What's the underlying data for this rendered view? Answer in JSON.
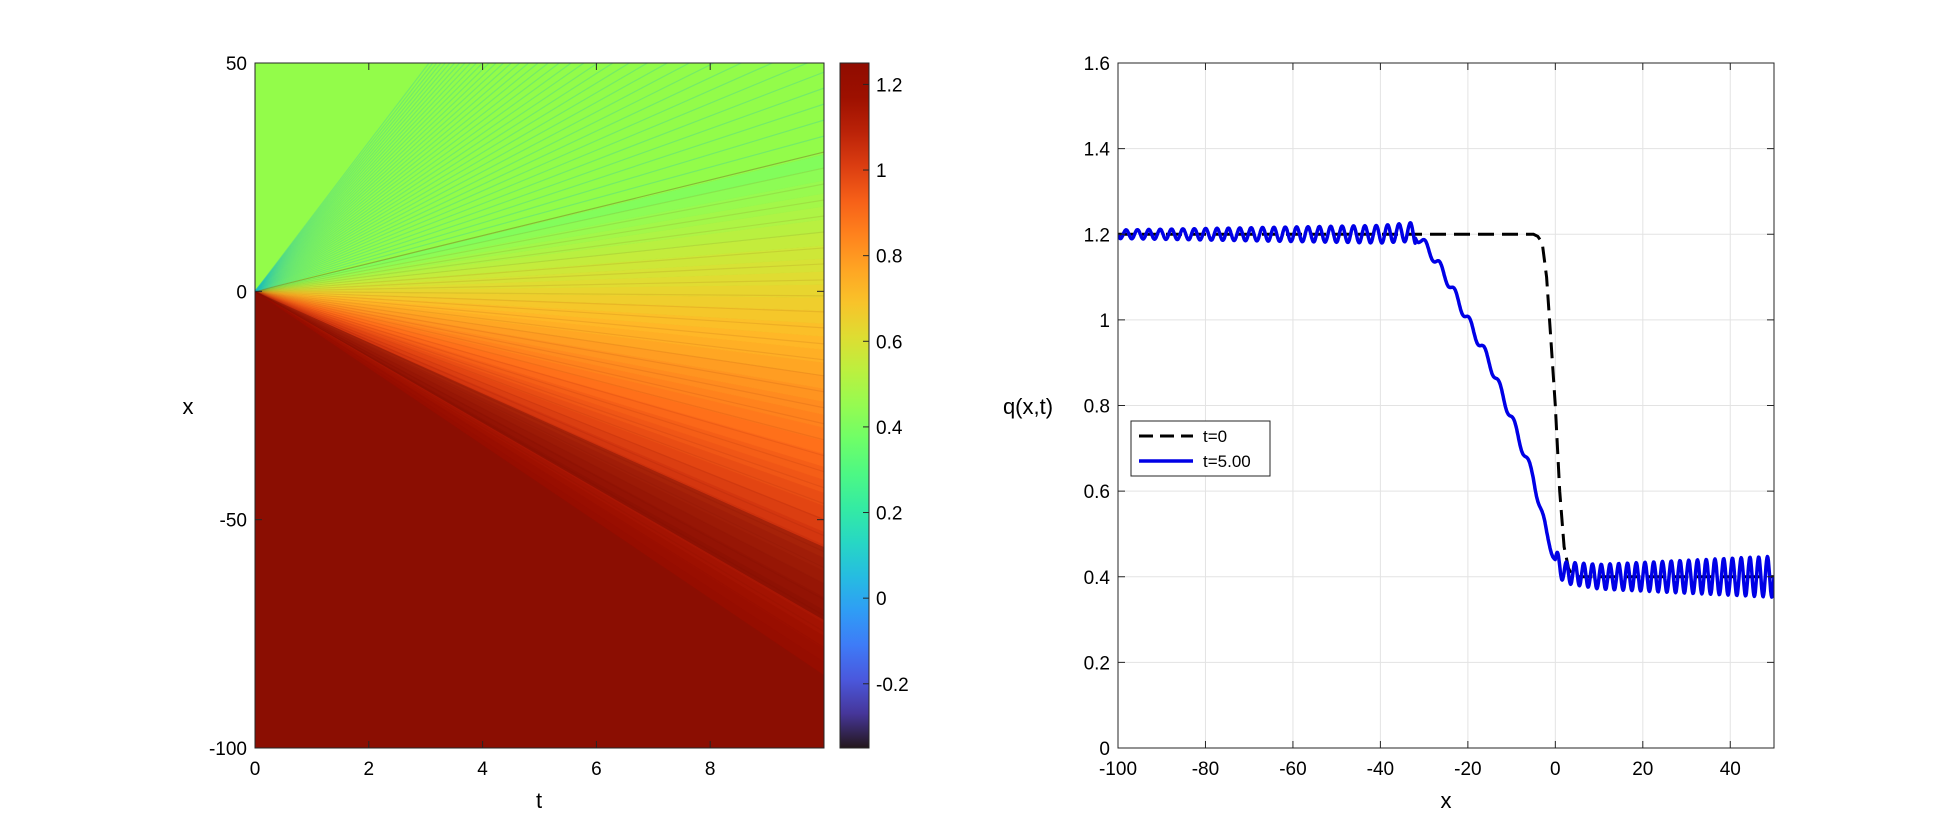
{
  "chart_data": [
    {
      "type": "heatmap",
      "title": "",
      "xlabel": "t",
      "ylabel": "x",
      "xlim": [
        0,
        10
      ],
      "ylim": [
        -100,
        50
      ],
      "x_ticks": [
        0,
        2,
        4,
        6,
        8
      ],
      "x_tick_labels": [
        "0",
        "2",
        "4",
        "6",
        "8"
      ],
      "y_ticks": [
        -100,
        -50,
        0,
        50
      ],
      "y_tick_labels": [
        "-100",
        "-50",
        "0",
        "50"
      ],
      "colorbar": {
        "range": [
          -0.35,
          1.25
        ],
        "ticks": [
          -0.2,
          0,
          0.2,
          0.4,
          0.6,
          0.8,
          1,
          1.2
        ],
        "tick_labels": [
          "-0.2",
          "0",
          "0.2",
          "0.4",
          "0.6",
          "0.8",
          "1",
          "1.2"
        ],
        "colormap": "turbo"
      },
      "field": {
        "left_state": 1.2,
        "right_state": 0.4,
        "shock_origin": [
          0,
          0
        ],
        "rarefaction_front_speed": -8.4,
        "rarefaction_back_speed": 3.0,
        "colors": {
          "left": "#8b0e02",
          "right": "#93fc4a"
        }
      }
    },
    {
      "type": "line",
      "title": "",
      "xlabel": "x",
      "ylabel": "q(x,t)",
      "xlim": [
        -100,
        50
      ],
      "ylim": [
        0,
        1.6
      ],
      "grid": true,
      "legend_position": "left",
      "x_ticks": [
        -100,
        -80,
        -60,
        -40,
        -20,
        0,
        20,
        40
      ],
      "x_tick_labels": [
        "-100",
        "-80",
        "-60",
        "-40",
        "-20",
        "0",
        "20",
        "40"
      ],
      "y_ticks": [
        0,
        0.2,
        0.4,
        0.6,
        0.8,
        1,
        1.2,
        1.4,
        1.6
      ],
      "y_tick_labels": [
        "0",
        "0.2",
        "0.4",
        "0.6",
        "0.8",
        "1",
        "1.2",
        "1.4",
        "1.6"
      ],
      "series": [
        {
          "name": "t=0",
          "style": "dashed",
          "color": "#000000",
          "x": [
            -100,
            -10,
            -5,
            -4,
            -3,
            -2,
            -1,
            0,
            1,
            2,
            3,
            4,
            50
          ],
          "y": [
            1.2,
            1.2,
            1.2,
            1.195,
            1.18,
            1.1,
            0.95,
            0.8,
            0.6,
            0.47,
            0.42,
            0.4,
            0.4
          ]
        },
        {
          "name": "t=5.00",
          "style": "solid",
          "color": "#0000e6",
          "x": [
            -100,
            -50,
            -40,
            -33,
            -31,
            -28,
            -25,
            -20,
            -15,
            -10,
            -5,
            -2,
            0,
            2,
            10,
            20,
            30,
            40,
            50
          ],
          "y": [
            1.2,
            1.2,
            1.2,
            1.205,
            1.19,
            1.15,
            1.1,
            1.0,
            0.9,
            0.77,
            0.63,
            0.5,
            0.44,
            0.41,
            0.4,
            0.4,
            0.4,
            0.4,
            0.4
          ],
          "oscillation_amplitude_left": 0.01,
          "oscillation_amplitude_right": 0.04
        }
      ]
    }
  ]
}
